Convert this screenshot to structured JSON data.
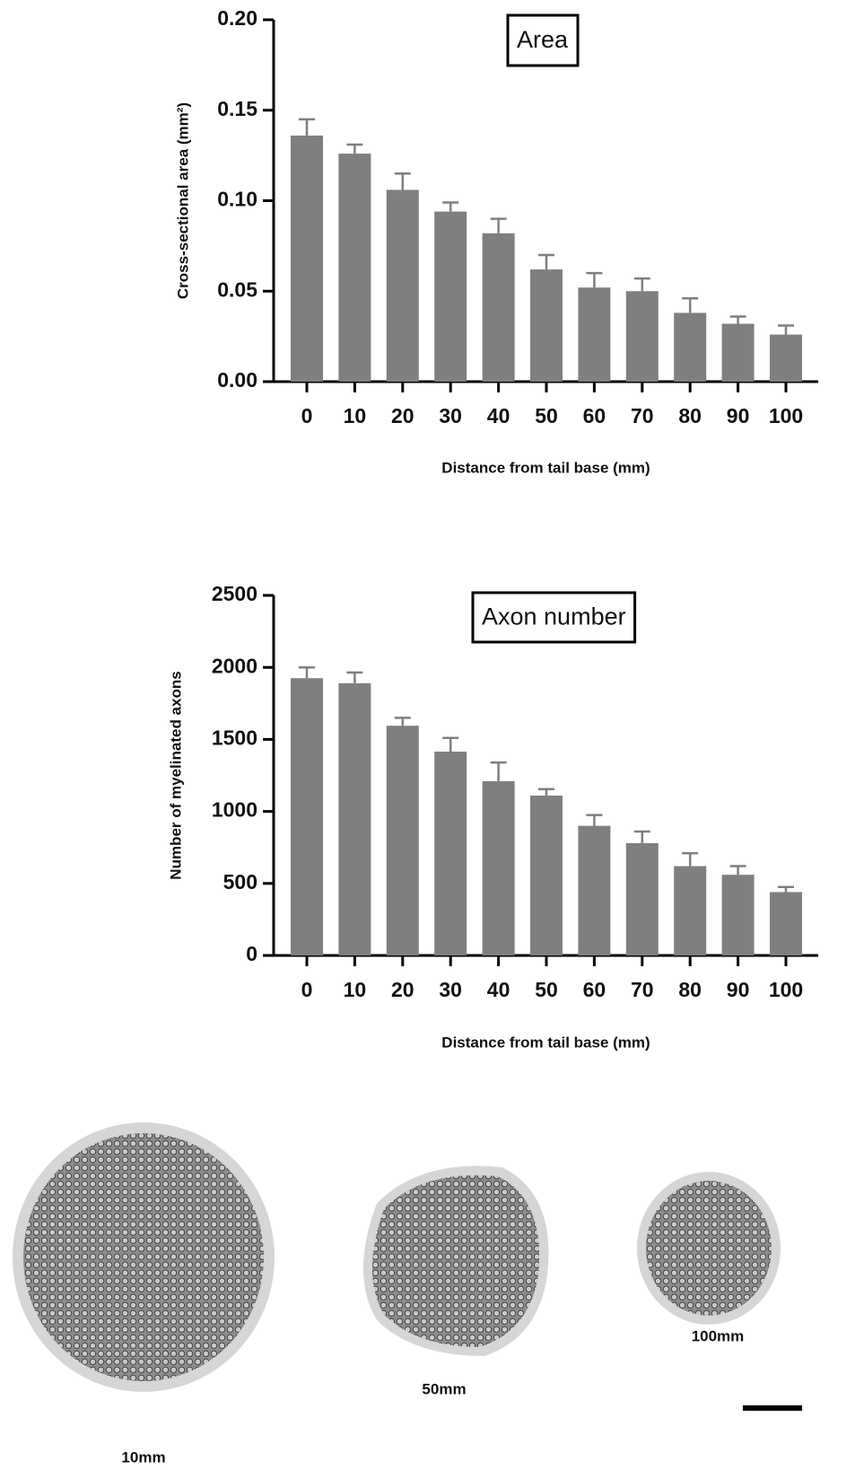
{
  "chart_data": [
    {
      "type": "bar",
      "title": "Area",
      "xlabel": "Distance from tail base (mm)",
      "ylabel": "Cross-sectional area (mm²)",
      "categories": [
        "0",
        "10",
        "20",
        "30",
        "40",
        "50",
        "60",
        "70",
        "80",
        "90",
        "100"
      ],
      "values": [
        0.136,
        0.126,
        0.106,
        0.094,
        0.082,
        0.062,
        0.052,
        0.05,
        0.038,
        0.032,
        0.026
      ],
      "errors": [
        0.009,
        0.005,
        0.009,
        0.005,
        0.008,
        0.008,
        0.008,
        0.007,
        0.008,
        0.004,
        0.005
      ],
      "color": "#7f7f7f",
      "ylim": [
        0,
        0.2
      ],
      "yticks": [
        {
          "value": 0,
          "label": "0.00"
        },
        0.05,
        {
          "value": 0.1,
          "label": "0.10"
        },
        0.15,
        {
          "value": 0.2,
          "label": "0.20"
        }
      ]
    },
    {
      "type": "bar",
      "title": "Axon number",
      "xlabel": "Distance from tail base (mm)",
      "ylabel": "Number of myelinated axons",
      "categories": [
        "0",
        "10",
        "20",
        "30",
        "40",
        "50",
        "60",
        "70",
        "80",
        "90",
        "100"
      ],
      "values": [
        1925,
        1890,
        1595,
        1415,
        1210,
        1110,
        900,
        780,
        620,
        560,
        440
      ],
      "errors": [
        75,
        75,
        55,
        95,
        130,
        45,
        75,
        80,
        90,
        60,
        35
      ],
      "color": "#7f7f7f",
      "ylim": [
        0,
        2500
      ],
      "yticks": [
        0,
        500,
        1000,
        1500,
        2000,
        2500
      ]
    }
  ],
  "micrographs": {
    "labels": [
      "10mm",
      "50mm",
      "100mm"
    ]
  }
}
